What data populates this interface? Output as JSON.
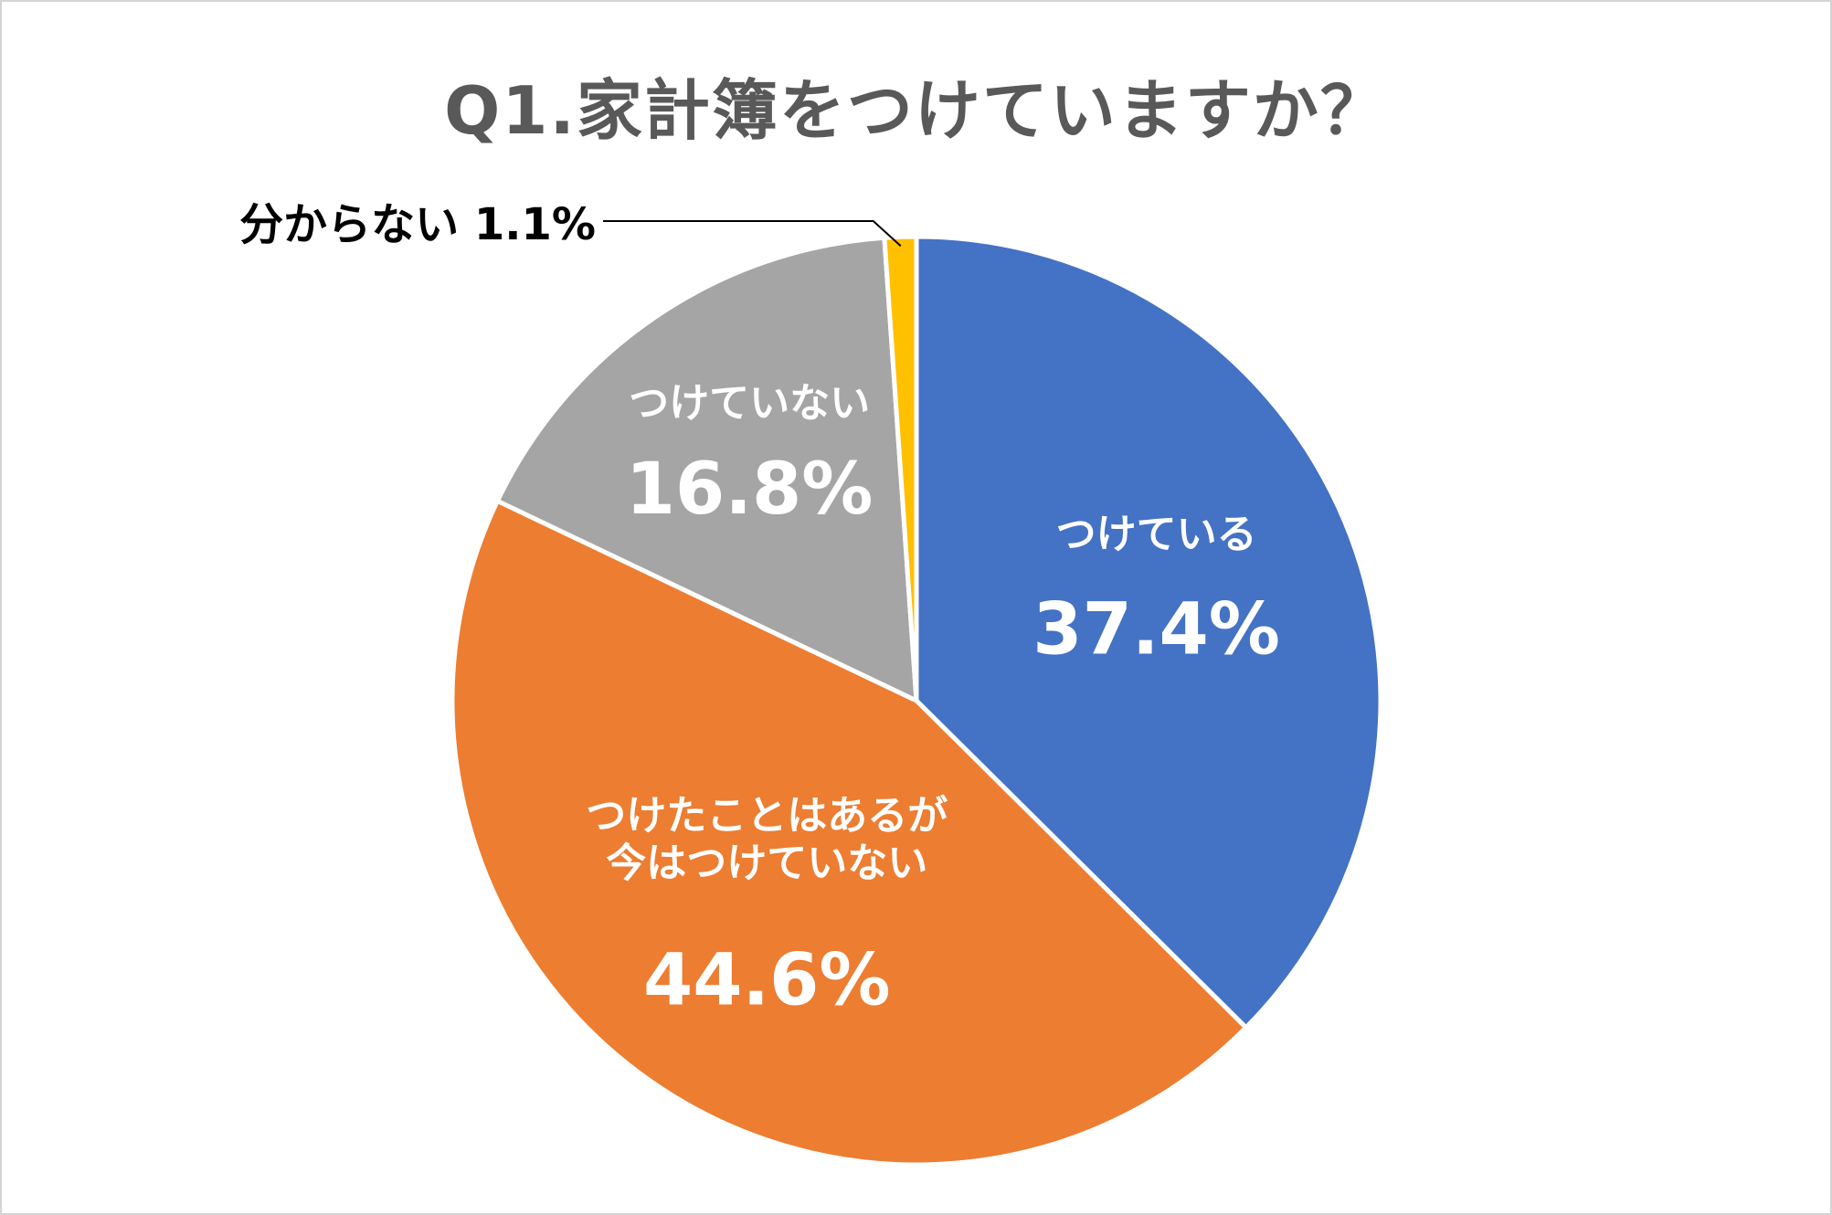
{
  "chart_data": {
    "type": "pie",
    "title": "Q1.家計簿をつけていますか？",
    "slices": [
      {
        "name": "つけている",
        "value": 37.4,
        "label_lines": [
          "つけている"
        ],
        "value_label": "37.4%",
        "color": "#4472C4"
      },
      {
        "name": "つけたことはあるが今はつけていない",
        "value": 44.6,
        "label_lines": [
          "つけたことはあるが",
          "今はつけていない"
        ],
        "value_label": "44.6%",
        "color": "#ED7D31"
      },
      {
        "name": "つけていない",
        "value": 16.8,
        "label_lines": [
          "つけていない"
        ],
        "value_label": "16.8%",
        "color": "#A5A5A5"
      },
      {
        "name": "分からない",
        "value": 1.1,
        "label_lines": [
          "分からない 1.1%"
        ],
        "value_label": "",
        "color": "#FFC000"
      }
    ],
    "start_angle": "12 o'clock",
    "direction": "clockwise",
    "legend": "none"
  }
}
